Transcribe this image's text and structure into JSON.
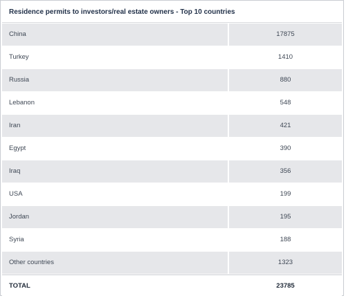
{
  "table": {
    "title": "Residence permits to investors/real estate owners - Top 10 countries",
    "rows": [
      {
        "country": "China",
        "value": "17875"
      },
      {
        "country": "Turkey",
        "value": "1410"
      },
      {
        "country": "Russia",
        "value": "880"
      },
      {
        "country": "Lebanon",
        "value": "548"
      },
      {
        "country": "Iran",
        "value": "421"
      },
      {
        "country": "Egypt",
        "value": "390"
      },
      {
        "country": "Iraq",
        "value": "356"
      },
      {
        "country": "USA",
        "value": "199"
      },
      {
        "country": "Jordan",
        "value": "195"
      },
      {
        "country": "Syria",
        "value": "188"
      },
      {
        "country": "Other countries",
        "value": "1323"
      }
    ],
    "total": {
      "label": "TOTAL",
      "value": "23785"
    }
  }
}
